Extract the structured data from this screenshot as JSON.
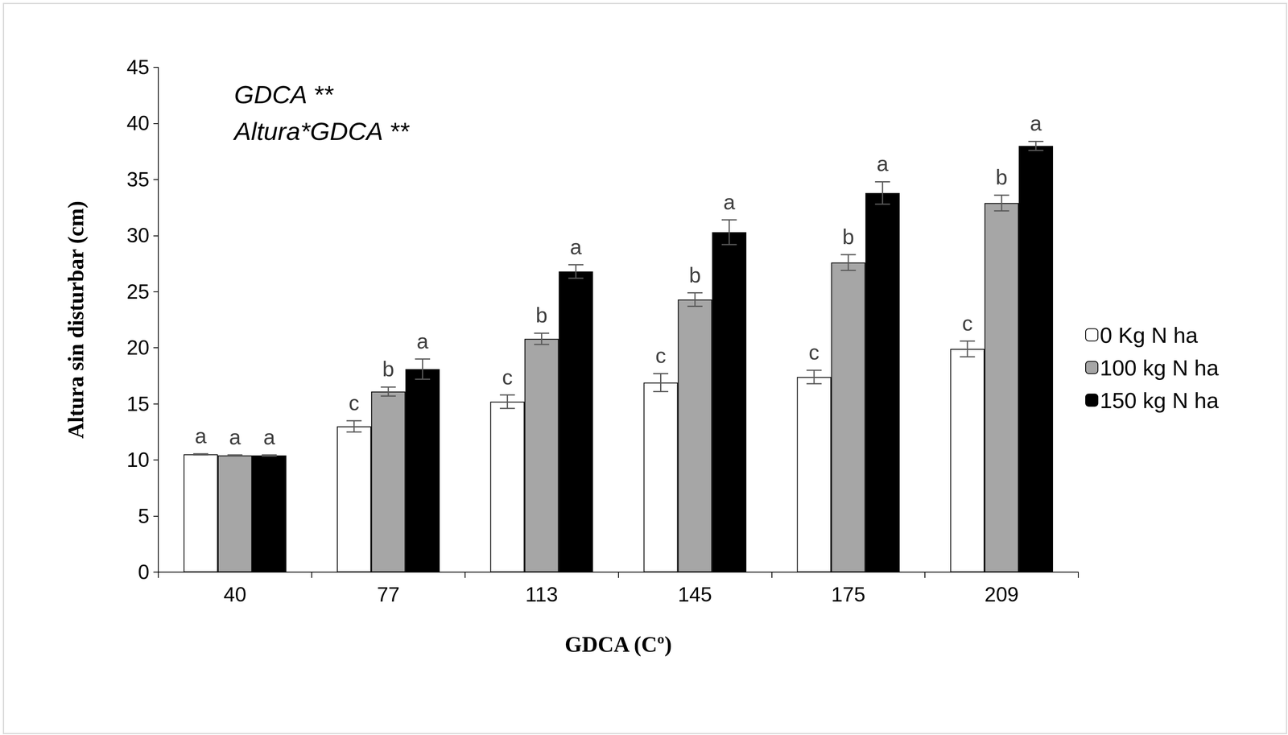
{
  "chart_data": {
    "type": "bar",
    "categories": [
      "40",
      "77",
      "113",
      "145",
      "175",
      "209"
    ],
    "x_label": "GDCA (Cº)",
    "y_label": "Altura sin disturbar (cm)",
    "annotations": [
      "GDCA **",
      "Altura*GDCA **"
    ],
    "ylim": [
      0,
      45
    ],
    "yticks": [
      0,
      5,
      10,
      15,
      20,
      25,
      30,
      35,
      40,
      45
    ],
    "grid": false,
    "legend": "right",
    "series": [
      {
        "name": "0 Kg N ha",
        "color": "#ffffff",
        "values": [
          10.5,
          13.0,
          15.2,
          16.9,
          17.4,
          19.9
        ],
        "errors": [
          0.05,
          0.5,
          0.6,
          0.8,
          0.6,
          0.7
        ],
        "letters": [
          "a",
          "c",
          "c",
          "c",
          "c",
          "c"
        ]
      },
      {
        "name": "100 kg N ha",
        "color": "#a6a6a6",
        "values": [
          10.4,
          16.1,
          20.8,
          24.3,
          27.6,
          32.9
        ],
        "errors": [
          0.05,
          0.4,
          0.5,
          0.6,
          0.7,
          0.7
        ],
        "letters": [
          "a",
          "b",
          "b",
          "b",
          "b",
          "b"
        ]
      },
      {
        "name": "150 kg N ha",
        "color": "#000000",
        "values": [
          10.4,
          18.1,
          26.8,
          30.3,
          33.8,
          38.0
        ],
        "errors": [
          0.05,
          0.9,
          0.6,
          1.1,
          1.0,
          0.4
        ],
        "letters": [
          "a",
          "a",
          "a",
          "a",
          "a",
          "a"
        ]
      }
    ]
  }
}
